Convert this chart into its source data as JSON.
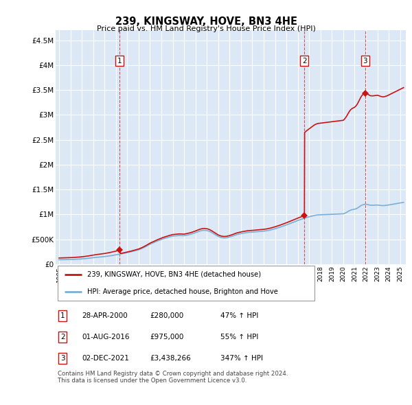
{
  "title": "239, KINGSWAY, HOVE, BN3 4HE",
  "subtitle": "Price paid vs. HM Land Registry's House Price Index (HPI)",
  "ylabel_ticks": [
    "£0",
    "£500K",
    "£1M",
    "£1.5M",
    "£2M",
    "£2.5M",
    "£3M",
    "£3.5M",
    "£4M",
    "£4.5M"
  ],
  "ylabel_values": [
    0,
    500000,
    1000000,
    1500000,
    2000000,
    2500000,
    3000000,
    3500000,
    4000000,
    4500000
  ],
  "ylim": [
    0,
    4700000
  ],
  "xlim_start": 1994.7,
  "xlim_end": 2025.5,
  "sales": [
    {
      "date_num": 2000.32,
      "price": 280000,
      "label": "1"
    },
    {
      "date_num": 2016.58,
      "price": 975000,
      "label": "2"
    },
    {
      "date_num": 2021.92,
      "price": 3438266,
      "label": "3"
    }
  ],
  "hpi_line_color": "#7bafd4",
  "sale_line_color": "#cc1111",
  "vline_color": "#cc1111",
  "background_color": "#dce8f5",
  "plot_bg": "#dce8f5",
  "grid_color": "#ffffff",
  "legend_entries": [
    "239, KINGSWAY, HOVE, BN3 4HE (detached house)",
    "HPI: Average price, detached house, Brighton and Hove"
  ],
  "table_rows": [
    {
      "num": "1",
      "date": "28-APR-2000",
      "price": "£280,000",
      "change": "47% ↑ HPI"
    },
    {
      "num": "2",
      "date": "01-AUG-2016",
      "price": "£975,000",
      "change": "55% ↑ HPI"
    },
    {
      "num": "3",
      "date": "02-DEC-2021",
      "price": "£3,438,266",
      "change": "347% ↑ HPI"
    }
  ],
  "footnote": "Contains HM Land Registry data © Crown copyright and database right 2024.\nThis data is licensed under the Open Government Licence v3.0.",
  "hpi_x": [
    1995.0,
    1995.1,
    1995.2,
    1995.3,
    1995.4,
    1995.5,
    1995.6,
    1995.7,
    1995.8,
    1995.9,
    1996.0,
    1996.1,
    1996.2,
    1996.3,
    1996.4,
    1996.5,
    1996.6,
    1996.7,
    1996.8,
    1996.9,
    1997.0,
    1997.1,
    1997.2,
    1997.3,
    1997.4,
    1997.5,
    1997.6,
    1997.7,
    1997.8,
    1997.9,
    1998.0,
    1998.1,
    1998.2,
    1998.3,
    1998.4,
    1998.5,
    1998.6,
    1998.7,
    1998.8,
    1998.9,
    1999.0,
    1999.1,
    1999.2,
    1999.3,
    1999.4,
    1999.5,
    1999.6,
    1999.7,
    1999.8,
    1999.9,
    2000.0,
    2000.1,
    2000.2,
    2000.3,
    2000.4,
    2000.5,
    2000.6,
    2000.7,
    2000.8,
    2000.9,
    2001.0,
    2001.1,
    2001.2,
    2001.3,
    2001.4,
    2001.5,
    2001.6,
    2001.7,
    2001.8,
    2001.9,
    2002.0,
    2002.1,
    2002.2,
    2002.3,
    2002.4,
    2002.5,
    2002.6,
    2002.7,
    2002.8,
    2002.9,
    2003.0,
    2003.1,
    2003.2,
    2003.3,
    2003.4,
    2003.5,
    2003.6,
    2003.7,
    2003.8,
    2003.9,
    2004.0,
    2004.1,
    2004.2,
    2004.3,
    2004.4,
    2004.5,
    2004.6,
    2004.7,
    2004.8,
    2004.9,
    2005.0,
    2005.1,
    2005.2,
    2005.3,
    2005.4,
    2005.5,
    2005.6,
    2005.7,
    2005.8,
    2005.9,
    2006.0,
    2006.1,
    2006.2,
    2006.3,
    2006.4,
    2006.5,
    2006.6,
    2006.7,
    2006.8,
    2006.9,
    2007.0,
    2007.1,
    2007.2,
    2007.3,
    2007.4,
    2007.5,
    2007.6,
    2007.7,
    2007.8,
    2007.9,
    2008.0,
    2008.1,
    2008.2,
    2008.3,
    2008.4,
    2008.5,
    2008.6,
    2008.7,
    2008.8,
    2008.9,
    2009.0,
    2009.1,
    2009.2,
    2009.3,
    2009.4,
    2009.5,
    2009.6,
    2009.7,
    2009.8,
    2009.9,
    2010.0,
    2010.1,
    2010.2,
    2010.3,
    2010.4,
    2010.5,
    2010.6,
    2010.7,
    2010.8,
    2010.9,
    2011.0,
    2011.1,
    2011.2,
    2011.3,
    2011.4,
    2011.5,
    2011.6,
    2011.7,
    2011.8,
    2011.9,
    2012.0,
    2012.1,
    2012.2,
    2012.3,
    2012.4,
    2012.5,
    2012.6,
    2012.7,
    2012.8,
    2012.9,
    2013.0,
    2013.1,
    2013.2,
    2013.3,
    2013.4,
    2013.5,
    2013.6,
    2013.7,
    2013.8,
    2013.9,
    2014.0,
    2014.1,
    2014.2,
    2014.3,
    2014.4,
    2014.5,
    2014.6,
    2014.7,
    2014.8,
    2014.9,
    2015.0,
    2015.1,
    2015.2,
    2015.3,
    2015.4,
    2015.5,
    2015.6,
    2015.7,
    2015.8,
    2015.9,
    2016.0,
    2016.1,
    2016.2,
    2016.3,
    2016.4,
    2016.5,
    2016.6,
    2016.7,
    2016.8,
    2016.9,
    2017.0,
    2017.1,
    2017.2,
    2017.3,
    2017.4,
    2017.5,
    2017.6,
    2017.7,
    2017.8,
    2017.9,
    2018.0,
    2018.1,
    2018.2,
    2018.3,
    2018.4,
    2018.5,
    2018.6,
    2018.7,
    2018.8,
    2018.9,
    2019.0,
    2019.1,
    2019.2,
    2019.3,
    2019.4,
    2019.5,
    2019.6,
    2019.7,
    2019.8,
    2019.9,
    2020.0,
    2020.1,
    2020.2,
    2020.3,
    2020.4,
    2020.5,
    2020.6,
    2020.7,
    2020.8,
    2020.9,
    2021.0,
    2021.1,
    2021.2,
    2021.3,
    2021.4,
    2021.5,
    2021.6,
    2021.7,
    2021.8,
    2021.9,
    2022.0,
    2022.1,
    2022.2,
    2022.3,
    2022.4,
    2022.5,
    2022.6,
    2022.7,
    2022.8,
    2022.9,
    2023.0,
    2023.1,
    2023.2,
    2023.3,
    2023.4,
    2023.5,
    2023.6,
    2023.7,
    2023.8,
    2023.9,
    2024.0,
    2024.1,
    2024.2,
    2024.3,
    2024.4,
    2024.5,
    2024.6,
    2024.7,
    2024.8,
    2024.9,
    2025.0,
    2025.1,
    2025.2,
    2025.3
  ],
  "hpi_y": [
    88000,
    88500,
    89000,
    89500,
    90000,
    90500,
    91000,
    91500,
    92000,
    92500,
    93000,
    94000,
    95000,
    96000,
    97000,
    98000,
    99000,
    100500,
    102000,
    103500,
    105000,
    107000,
    109000,
    111000,
    113000,
    115500,
    118000,
    121000,
    124000,
    127000,
    130000,
    132000,
    134000,
    136500,
    139000,
    141500,
    144000,
    146000,
    148000,
    150000,
    152000,
    155000,
    158000,
    161000,
    164000,
    167500,
    171000,
    175000,
    179000,
    183000,
    187000,
    191000,
    195000,
    199000,
    203000,
    207000,
    211500,
    216000,
    221000,
    226000,
    231000,
    236000,
    241000,
    246500,
    252000,
    258000,
    264000,
    270000,
    276000,
    282000,
    288000,
    297000,
    306000,
    316000,
    326000,
    337000,
    349000,
    361000,
    374000,
    387000,
    400000,
    410000,
    420000,
    430000,
    440000,
    450000,
    460000,
    469000,
    478000,
    487000,
    496000,
    504000,
    512000,
    519000,
    526000,
    533000,
    540000,
    546000,
    552000,
    558000,
    564000,
    566000,
    568000,
    570000,
    572000,
    574000,
    576000,
    575000,
    574000,
    573000,
    572000,
    576000,
    580000,
    585000,
    590000,
    596000,
    602000,
    609000,
    616000,
    624000,
    632000,
    640000,
    649000,
    658000,
    666000,
    672000,
    677000,
    679000,
    679000,
    677000,
    675000,
    669000,
    661000,
    651000,
    639000,
    626000,
    612000,
    598000,
    584000,
    570000,
    557000,
    548000,
    540000,
    534000,
    530000,
    528000,
    528000,
    530000,
    534000,
    539000,
    545000,
    552000,
    559000,
    567000,
    576000,
    584000,
    592000,
    598000,
    604000,
    609000,
    614000,
    618000,
    622000,
    626000,
    630000,
    634000,
    637000,
    639000,
    641000,
    642000,
    643000,
    645000,
    647000,
    649000,
    651000,
    653000,
    655000,
    657000,
    659000,
    661000,
    663000,
    666000,
    669000,
    673000,
    677000,
    682000,
    687000,
    693000,
    699000,
    705000,
    712000,
    719000,
    726000,
    733000,
    740000,
    748000,
    756000,
    764000,
    772000,
    780000,
    788000,
    797000,
    806000,
    815000,
    824000,
    833000,
    842000,
    851000,
    860000,
    869000,
    878000,
    886000,
    894000,
    902000,
    910000,
    918000,
    926000,
    933000,
    940000,
    946000,
    952000,
    958000,
    964000,
    970000,
    976000,
    981000,
    985000,
    988000,
    990000,
    991000,
    992000,
    993000,
    994000,
    995000,
    996000,
    997000,
    998000,
    999000,
    1000000,
    1001000,
    1002000,
    1003000,
    1004000,
    1005000,
    1006000,
    1007000,
    1008000,
    1009000,
    1010000,
    1011000,
    1012000,
    1020000,
    1030000,
    1042000,
    1056000,
    1070000,
    1082000,
    1090000,
    1096000,
    1100000,
    1104000,
    1112000,
    1122000,
    1136000,
    1152000,
    1168000,
    1182000,
    1192000,
    1199000,
    1203000,
    1204000,
    1200000,
    1194000,
    1188000,
    1185000,
    1184000,
    1184000,
    1185000,
    1186000,
    1187000,
    1188000,
    1186000,
    1183000,
    1180000,
    1178000,
    1177000,
    1178000,
    1180000,
    1183000,
    1186000,
    1190000,
    1194000,
    1198000,
    1202000,
    1206000,
    1210000,
    1214000,
    1218000,
    1222000,
    1226000,
    1230000,
    1234000,
    1238000,
    1242000
  ],
  "red_x": [
    1995.0,
    1995.1,
    1995.2,
    1995.3,
    1995.4,
    1995.5,
    1995.6,
    1995.7,
    1995.8,
    1995.9,
    1996.0,
    1996.1,
    1996.2,
    1996.3,
    1996.4,
    1996.5,
    1996.6,
    1996.7,
    1996.8,
    1996.9,
    1997.0,
    1997.1,
    1997.2,
    1997.3,
    1997.4,
    1997.5,
    1997.6,
    1997.7,
    1997.8,
    1997.9,
    1998.0,
    1998.1,
    1998.2,
    1998.3,
    1998.4,
    1998.5,
    1998.6,
    1998.7,
    1998.8,
    1998.9,
    1999.0,
    1999.1,
    1999.2,
    1999.3,
    1999.4,
    1999.5,
    1999.6,
    1999.7,
    1999.8,
    1999.9,
    2000.0,
    2000.1,
    2000.2,
    2000.32,
    2000.4,
    2000.5,
    2000.6,
    2000.7,
    2000.8,
    2000.9,
    2001.0,
    2001.1,
    2001.2,
    2001.3,
    2001.4,
    2001.5,
    2001.6,
    2001.7,
    2001.8,
    2001.9,
    2002.0,
    2002.1,
    2002.2,
    2002.3,
    2002.4,
    2002.5,
    2002.6,
    2002.7,
    2002.8,
    2002.9,
    2003.0,
    2003.1,
    2003.2,
    2003.3,
    2003.4,
    2003.5,
    2003.6,
    2003.7,
    2003.8,
    2003.9,
    2004.0,
    2004.1,
    2004.2,
    2004.3,
    2004.4,
    2004.5,
    2004.6,
    2004.7,
    2004.8,
    2004.9,
    2005.0,
    2005.1,
    2005.2,
    2005.3,
    2005.4,
    2005.5,
    2005.6,
    2005.7,
    2005.8,
    2005.9,
    2006.0,
    2006.1,
    2006.2,
    2006.3,
    2006.4,
    2006.5,
    2006.6,
    2006.7,
    2006.8,
    2006.9,
    2007.0,
    2007.1,
    2007.2,
    2007.3,
    2007.4,
    2007.5,
    2007.6,
    2007.7,
    2007.8,
    2007.9,
    2008.0,
    2008.1,
    2008.2,
    2008.3,
    2008.4,
    2008.5,
    2008.6,
    2008.7,
    2008.8,
    2008.9,
    2009.0,
    2009.1,
    2009.2,
    2009.3,
    2009.4,
    2009.5,
    2009.6,
    2009.7,
    2009.8,
    2009.9,
    2010.0,
    2010.1,
    2010.2,
    2010.3,
    2010.4,
    2010.5,
    2010.6,
    2010.7,
    2010.8,
    2010.9,
    2011.0,
    2011.1,
    2011.2,
    2011.3,
    2011.4,
    2011.5,
    2011.6,
    2011.7,
    2011.8,
    2011.9,
    2012.0,
    2012.1,
    2012.2,
    2012.3,
    2012.4,
    2012.5,
    2012.6,
    2012.7,
    2012.8,
    2012.9,
    2013.0,
    2013.1,
    2013.2,
    2013.3,
    2013.4,
    2013.5,
    2013.6,
    2013.7,
    2013.8,
    2013.9,
    2014.0,
    2014.1,
    2014.2,
    2014.3,
    2014.4,
    2014.5,
    2014.6,
    2014.7,
    2014.8,
    2014.9,
    2015.0,
    2015.1,
    2015.2,
    2015.3,
    2015.4,
    2015.5,
    2015.6,
    2015.7,
    2015.8,
    2015.9,
    2016.0,
    2016.1,
    2016.2,
    2016.3,
    2016.4,
    2016.5,
    2016.58,
    2016.6,
    2016.7,
    2016.8,
    2016.9,
    2017.0,
    2017.1,
    2017.2,
    2017.3,
    2017.4,
    2017.5,
    2017.6,
    2017.7,
    2017.8,
    2017.9,
    2018.0,
    2018.1,
    2018.2,
    2018.3,
    2018.4,
    2018.5,
    2018.6,
    2018.7,
    2018.8,
    2018.9,
    2019.0,
    2019.1,
    2019.2,
    2019.3,
    2019.4,
    2019.5,
    2019.6,
    2019.7,
    2019.8,
    2019.9,
    2020.0,
    2020.1,
    2020.2,
    2020.3,
    2020.4,
    2020.5,
    2020.6,
    2020.7,
    2020.8,
    2020.9,
    2021.0,
    2021.1,
    2021.2,
    2021.3,
    2021.4,
    2021.5,
    2021.6,
    2021.7,
    2021.8,
    2021.92,
    2022.0,
    2022.1,
    2022.2,
    2022.3,
    2022.4,
    2022.5,
    2022.6,
    2022.7,
    2022.8,
    2022.9,
    2023.0,
    2023.1,
    2023.2,
    2023.3,
    2023.4,
    2023.5,
    2023.6,
    2023.7,
    2023.8,
    2023.9,
    2024.0,
    2024.1,
    2024.2,
    2024.3,
    2024.4,
    2024.5,
    2024.6,
    2024.7,
    2024.8,
    2024.9,
    2025.0,
    2025.1,
    2025.2,
    2025.3
  ]
}
